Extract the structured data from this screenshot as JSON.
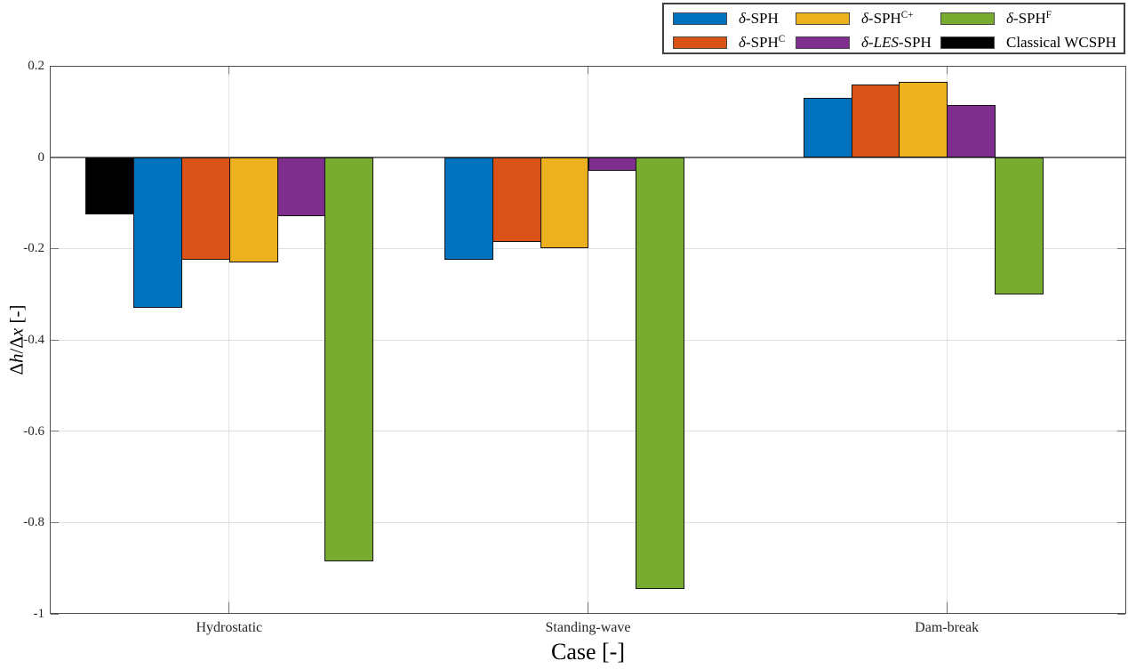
{
  "chart_data": {
    "type": "bar",
    "title": "",
    "xlabel": "Case [-]",
    "ylabel": "Δh/Δx [-]",
    "ylabel_parts": [
      {
        "t": "Δ"
      },
      {
        "t": "h",
        "i": true
      },
      {
        "t": "/Δ"
      },
      {
        "t": "x",
        "i": true
      },
      {
        "t": " [-]"
      }
    ],
    "axis": {
      "ymin": -1,
      "ymax": 0.2,
      "ytick_labels": [
        "0.2",
        "0",
        "-0.2",
        "-0.4",
        "-0.6",
        "-0.8",
        "-1"
      ],
      "ytick_values": [
        0.2,
        0,
        -0.2,
        -0.4,
        -0.6,
        -0.8,
        -1
      ],
      "grid": true
    },
    "categories": [
      "Hydrostatic",
      "Standing-wave",
      "Dam-break"
    ],
    "slots_per_group": 6,
    "series": {
      "dsph": {
        "color": "#0072BD",
        "name": "δ-SPH",
        "parts": [
          {
            "t": "δ",
            "i": true
          },
          {
            "t": "-SPH"
          }
        ],
        "values": [
          -0.33,
          -0.225,
          0.13
        ]
      },
      "dsphC": {
        "color": "#D95319",
        "name": "δ-SPH C",
        "parts": [
          {
            "t": "δ",
            "i": true
          },
          {
            "t": "-SPH"
          },
          {
            "t": "C",
            "sup": true
          }
        ],
        "values": [
          -0.225,
          -0.185,
          0.16
        ]
      },
      "dsphCp": {
        "color": "#EDB120",
        "name": "δ-SPH C+",
        "parts": [
          {
            "t": "δ",
            "i": true
          },
          {
            "t": "-SPH"
          },
          {
            "t": "C+",
            "sup": true
          }
        ],
        "values": [
          -0.23,
          -0.2,
          0.165
        ]
      },
      "dles": {
        "color": "#7E2F8E",
        "name": "δ-LES-SPH",
        "parts": [
          {
            "t": "δ",
            "i": true
          },
          {
            "t": "-"
          },
          {
            "t": "LES",
            "i": true
          },
          {
            "t": "-SPH"
          }
        ],
        "values": [
          -0.13,
          -0.03,
          0.115
        ]
      },
      "dsphF": {
        "color": "#77AC30",
        "name": "δ-SPH F",
        "parts": [
          {
            "t": "δ",
            "i": true
          },
          {
            "t": "-SPH"
          },
          {
            "t": "F",
            "sup": true
          }
        ],
        "values": [
          -0.885,
          -0.945,
          -0.3
        ]
      },
      "wcsph": {
        "color": "#000000",
        "name": "Classical WCSPH",
        "parts": [
          {
            "t": "Classical WCSPH"
          }
        ],
        "values": [
          -0.125,
          null,
          null
        ]
      }
    },
    "slot_layout": [
      [
        "wcsph",
        "dsph",
        "dsphC",
        "dsphCp",
        "dles",
        "dsphF"
      ],
      [
        "dsph",
        "dsphC",
        "dsphCp",
        "dles",
        "dsphF"
      ],
      [
        "dsph",
        "dsphC",
        "dsphCp",
        "dles",
        "dsphF"
      ]
    ],
    "legend_order": [
      "dsph",
      "dsphC",
      "dsphCp",
      "dles",
      "dsphF",
      "wcsph"
    ],
    "colors": {
      "grid": "#e0e0e0",
      "zero_line": "#737373",
      "spine": "#4d4d4d",
      "tick": "#737373",
      "tick_label": "#262626",
      "bar_edge": "#141414",
      "legend_border": "#404040",
      "background": "#ffffff"
    }
  }
}
